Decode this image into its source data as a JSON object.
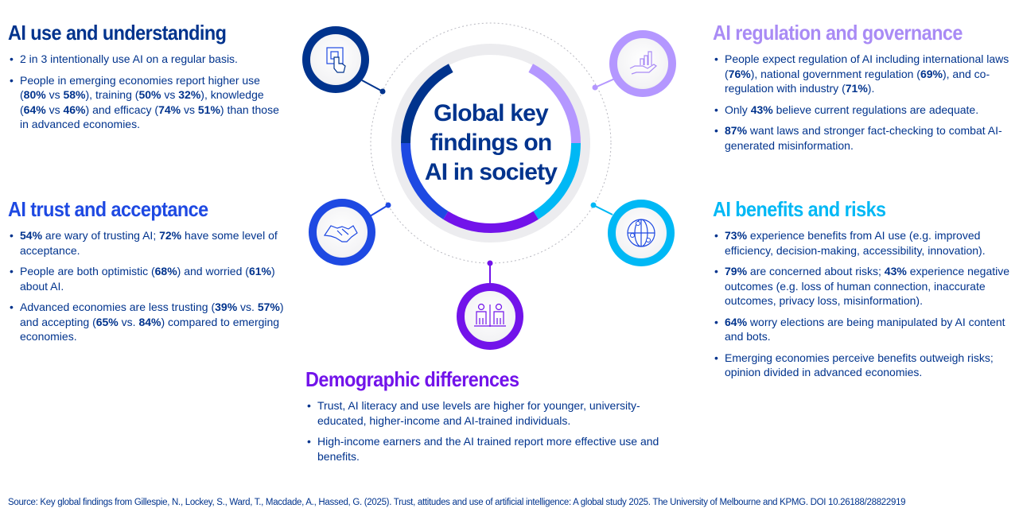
{
  "center_title": "Global key findings on AI in society",
  "colors": {
    "navy": "#00338D",
    "blue": "#1E49E2",
    "purple": "#7213EA",
    "lavender": "#B497FF",
    "cyan": "#00B8F5"
  },
  "sections": {
    "use": {
      "title": "AI use and understanding",
      "icon": "chip-touch-icon",
      "bullets": [
        [
          {
            "t": "2 in 3 intentionally use AI on a regular basis."
          }
        ],
        [
          {
            "t": "People in emerging economies report higher use ("
          },
          {
            "t": "80%",
            "b": true
          },
          {
            "t": " vs "
          },
          {
            "t": "58%",
            "b": true
          },
          {
            "t": "), training ("
          },
          {
            "t": "50%",
            "b": true
          },
          {
            "t": " vs "
          },
          {
            "t": "32%",
            "b": true
          },
          {
            "t": "), knowledge ("
          },
          {
            "t": "64%",
            "b": true
          },
          {
            "t": " vs "
          },
          {
            "t": "46%",
            "b": true
          },
          {
            "t": ") and efficacy ("
          },
          {
            "t": "74%",
            "b": true
          },
          {
            "t": " vs "
          },
          {
            "t": "51%",
            "b": true
          },
          {
            "t": ") than those in advanced economies."
          }
        ]
      ]
    },
    "trust": {
      "title": "AI trust and acceptance",
      "icon": "handshake-icon",
      "bullets": [
        [
          {
            "t": "54%",
            "b": true
          },
          {
            "t": " are wary of trusting AI; "
          },
          {
            "t": "72%",
            "b": true
          },
          {
            "t": " have some level of acceptance."
          }
        ],
        [
          {
            "t": "People are both optimistic ("
          },
          {
            "t": "68%",
            "b": true
          },
          {
            "t": ") and worried ("
          },
          {
            "t": "61%",
            "b": true
          },
          {
            "t": ") about AI."
          }
        ],
        [
          {
            "t": "Advanced economies are less trusting ("
          },
          {
            "t": "39%",
            "b": true
          },
          {
            "t": " vs. "
          },
          {
            "t": "57%",
            "b": true
          },
          {
            "t": ") and accepting ("
          },
          {
            "t": "65%",
            "b": true
          },
          {
            "t": " vs. "
          },
          {
            "t": "84%",
            "b": true
          },
          {
            "t": ") compared to emerging economies."
          }
        ]
      ]
    },
    "regulation": {
      "title": "AI regulation and governance",
      "icon": "hand-chart-icon",
      "bullets": [
        [
          {
            "t": "People expect regulation of AI including international laws ("
          },
          {
            "t": "76%",
            "b": true
          },
          {
            "t": "), national government regulation ("
          },
          {
            "t": "69%",
            "b": true
          },
          {
            "t": "), and co-regulation with industry ("
          },
          {
            "t": "71%",
            "b": true
          },
          {
            "t": ")."
          }
        ],
        [
          {
            "t": "Only "
          },
          {
            "t": "43%",
            "b": true
          },
          {
            "t": " believe current regulations are adequate."
          }
        ],
        [
          {
            "t": "87%",
            "b": true
          },
          {
            "t": " want laws and stronger fact-checking to combat AI-generated misinformation."
          }
        ]
      ]
    },
    "benefits": {
      "title": "AI benefits and risks",
      "icon": "globe-network-icon",
      "bullets": [
        [
          {
            "t": "73%",
            "b": true
          },
          {
            "t": " experience benefits from AI use (e.g. improved efficiency, decision-making, accessibility, innovation)."
          }
        ],
        [
          {
            "t": "79%",
            "b": true
          },
          {
            "t": " are concerned about risks; "
          },
          {
            "t": "43%",
            "b": true
          },
          {
            "t": " experience negative outcomes (e.g. loss of human connection, inaccurate outcomes, privacy loss, misinformation)."
          }
        ],
        [
          {
            "t": "64%",
            "b": true
          },
          {
            "t": " worry elections are being manipulated by AI content and bots."
          }
        ],
        [
          {
            "t": "Emerging economies perceive benefits outweigh risks; opinion divided in advanced economies."
          }
        ]
      ]
    },
    "demographic": {
      "title": "Demographic differences",
      "icon": "people-icon",
      "bullets": [
        [
          {
            "t": "Trust, AI literacy and use levels are higher for younger, university-educated, higher-income and AI-trained individuals."
          }
        ],
        [
          {
            "t": "High-income earners and the AI trained report more effective use and benefits."
          }
        ]
      ]
    }
  },
  "source": "Source: Key global findings from Gillespie, N., Lockey, S., Ward, T., Macdade, A., Hassed, G. (2025). Trust, attitudes and use of artificial intelligence: A global study 2025. The University of Melbourne and KPMG.  DOI 10.26188/28822919"
}
